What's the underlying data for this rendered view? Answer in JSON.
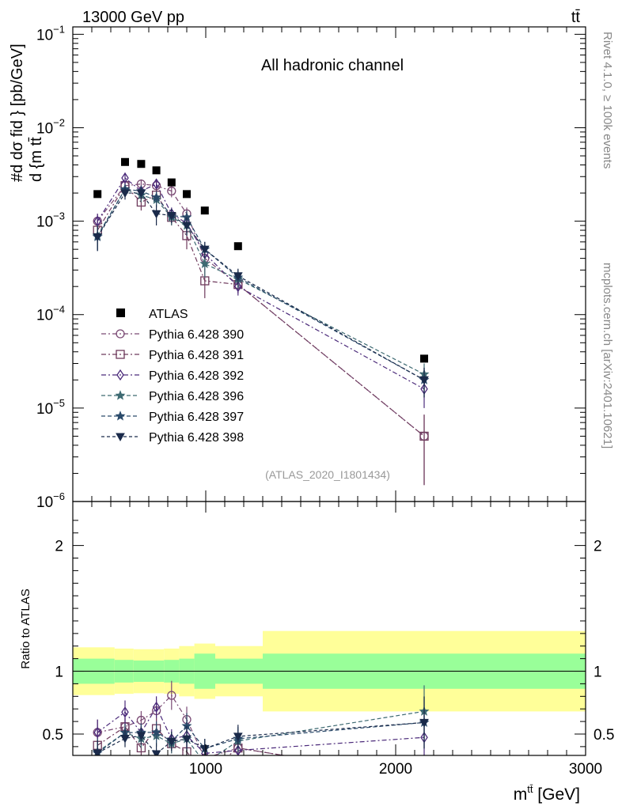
{
  "chart_data": {
    "type": "scatter",
    "header_left": "13000 GeV pp",
    "header_right": "tt̄",
    "title": "All hadronic channel",
    "ref_label": "(ATLAS_2020_I1801434)",
    "side_label_top": "Rivet 4.1.0, ≥ 100k events",
    "side_label_bottom": "mcplots.cern.ch [arXiv:2401.10621]",
    "ylabel_main": "#d dσ^{fid} / d {m^{tt̄}} [pb/GeV]",
    "ylabel_main_top": "#d dσ fid } [pb/GeV]",
    "ylabel_main_bottom": "d {m tt̄",
    "ylabel_ratio": "Ratio to ATLAS",
    "xlabel": "m^{tt̄} [GeV]",
    "xlabel_base": "m",
    "xlabel_sup": "tt̄",
    "xlabel_unit": "[GeV]",
    "xlim": [
      300,
      3000
    ],
    "ylim_main": [
      1e-06,
      0.12
    ],
    "ylim_ratio": [
      0.33,
      2.35
    ],
    "xticks": [
      {
        "v": 1000,
        "label": "1000"
      },
      {
        "v": 2000,
        "label": "2000"
      },
      {
        "v": 3000,
        "label": "3000"
      }
    ],
    "yticks_main": [
      {
        "v": 0.1,
        "base": "10",
        "exp": "−1"
      },
      {
        "v": 0.01,
        "base": "10",
        "exp": "−2"
      },
      {
        "v": 0.001,
        "base": "10",
        "exp": "−3"
      },
      {
        "v": 0.0001,
        "base": "10",
        "exp": "−4"
      },
      {
        "v": 1e-05,
        "base": "10",
        "exp": "−5"
      },
      {
        "v": 1e-06,
        "base": "10",
        "exp": "−6"
      }
    ],
    "yticks_ratio": [
      {
        "v": 2,
        "label": "2"
      },
      {
        "v": 1,
        "label": "1"
      },
      {
        "v": 0.5,
        "label": "0.5"
      }
    ],
    "bins": [
      {
        "lo": 300,
        "hi": 520,
        "x": 430,
        "atlas": 0.00195,
        "band_in": 0.1,
        "band_out": 0.19
      },
      {
        "lo": 520,
        "hi": 620,
        "x": 575,
        "atlas": 0.0043,
        "band_in": 0.09,
        "band_out": 0.18
      },
      {
        "lo": 620,
        "hi": 700,
        "x": 660,
        "atlas": 0.0041,
        "band_in": 0.085,
        "band_out": 0.175
      },
      {
        "lo": 700,
        "hi": 780,
        "x": 740,
        "atlas": 0.0035,
        "band_in": 0.085,
        "band_out": 0.175
      },
      {
        "lo": 780,
        "hi": 860,
        "x": 820,
        "atlas": 0.0026,
        "band_in": 0.09,
        "band_out": 0.18
      },
      {
        "lo": 860,
        "hi": 940,
        "x": 900,
        "atlas": 0.00195,
        "band_in": 0.1,
        "band_out": 0.2
      },
      {
        "lo": 940,
        "hi": 1050,
        "x": 995,
        "atlas": 0.0013,
        "band_in": 0.14,
        "band_out": 0.22
      },
      {
        "lo": 1050,
        "hi": 1300,
        "x": 1170,
        "atlas": 0.00054,
        "band_in": 0.1,
        "band_out": 0.2
      },
      {
        "lo": 1300,
        "hi": 3000,
        "x": 2150,
        "atlas": 3.38e-05,
        "band_in": 0.14,
        "band_out": 0.32
      }
    ],
    "legend_atlas": "ATLAS",
    "series": [
      {
        "name": "Pythia 6.428 390",
        "color": "#7a4a74",
        "marker": "circle",
        "dash": "6,3,2,3",
        "values": [
          0.001,
          0.0024,
          0.0025,
          0.0024,
          0.0021,
          0.0012,
          0.0004,
          0.00021,
          5e-06
        ],
        "errors": [
          0.0002,
          0.0003,
          0.0003,
          0.0003,
          0.0003,
          0.0002,
          0.0001,
          4e-05,
          3.5e-06
        ]
      },
      {
        "name": "Pythia 6.428 391",
        "color": "#6e3a5c",
        "marker": "square",
        "dash": "6,3,2,3",
        "values": [
          0.0008,
          0.0024,
          0.0016,
          0.0019,
          0.0011,
          0.0007,
          0.00023,
          0.00021,
          5e-06
        ],
        "errors": [
          0.0002,
          0.0003,
          0.0003,
          0.0003,
          0.0002,
          0.0002,
          8e-05,
          4e-05,
          3.5e-06
        ]
      },
      {
        "name": "Pythia 6.428 392",
        "color": "#4b2a7a",
        "marker": "diamond",
        "dash": "6,3,2,3",
        "values": [
          0.001,
          0.0029,
          0.0021,
          0.0025,
          0.0012,
          0.00095,
          0.00045,
          0.0002,
          1.6e-05
        ],
        "errors": [
          0.0002,
          0.0004,
          0.0003,
          0.0003,
          0.0002,
          0.0002,
          0.0001,
          4e-05,
          6e-06
        ]
      },
      {
        "name": "Pythia 6.428 396",
        "color": "#3e6a72",
        "marker": "star",
        "dash": "5,3",
        "values": [
          0.0007,
          0.0022,
          0.0019,
          0.0017,
          0.0011,
          0.0009,
          0.00035,
          0.00024,
          2.3e-05
        ],
        "errors": [
          0.0002,
          0.0003,
          0.0003,
          0.0003,
          0.0002,
          0.0002,
          0.0001,
          5e-05,
          7e-06
        ]
      },
      {
        "name": "Pythia 6.428 397",
        "color": "#2a4a6a",
        "marker": "star",
        "dash": "5,3",
        "values": [
          0.00068,
          0.0022,
          0.0021,
          0.0018,
          0.00115,
          0.0011,
          0.0005,
          0.00025,
          2e-05
        ],
        "errors": [
          0.0002,
          0.0003,
          0.0003,
          0.0003,
          0.0002,
          0.0002,
          0.0001,
          5e-05,
          7e-06
        ]
      },
      {
        "name": "Pythia 6.428 398",
        "color": "#1a2a4a",
        "marker": "triangle",
        "dash": "4,3",
        "values": [
          0.00068,
          0.002,
          0.002,
          0.0012,
          0.00115,
          0.0009,
          0.0005,
          0.00026,
          2e-05
        ],
        "errors": [
          0.0002,
          0.0003,
          0.0003,
          0.0003,
          0.0002,
          0.0002,
          0.0001,
          5e-05,
          7e-06
        ]
      }
    ]
  }
}
